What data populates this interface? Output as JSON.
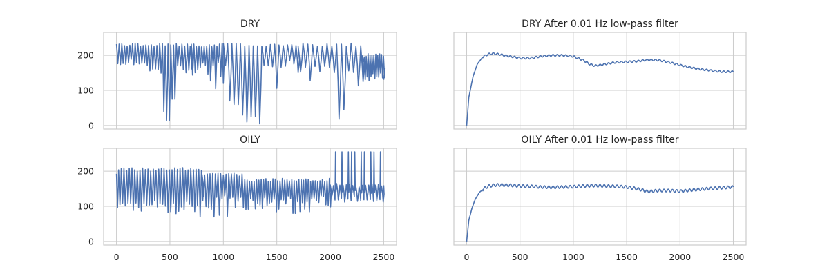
{
  "colors": {
    "line": "#4c72b0",
    "grid": "#cccccc",
    "spine": "#cccccc",
    "background": "#ffffff",
    "text": "#262626"
  },
  "chart_data": [
    {
      "type": "line",
      "title": "DRY",
      "xlabel": "",
      "ylabel": "",
      "xlim": [
        -120,
        2620
      ],
      "ylim": [
        -10,
        265
      ],
      "x_ticks": [
        0,
        500,
        1000,
        1500,
        2000,
        2500
      ],
      "y_ticks": [
        0,
        100,
        200
      ],
      "show_x_tick_labels": false,
      "show_y_tick_labels": true,
      "grid": true,
      "series": [
        {
          "pattern": "oscillating",
          "segments": [
            {
              "x": [
                0,
                300
              ],
              "period": 25,
              "high": 230,
              "low": 180,
              "spike_low": 170
            },
            {
              "x": [
                300,
                700
              ],
              "period": 26,
              "high": 230,
              "low": 160,
              "spike_low": 130,
              "deep_dips": [
                {
                  "x": 420,
                  "y": 40
                },
                {
                  "x": 470,
                  "y": 15
                },
                {
                  "x": 520,
                  "y": 75
                },
                {
                  "x": 580,
                  "y": 170
                }
              ]
            },
            {
              "x": [
                700,
                1000
              ],
              "period": 24,
              "high": 228,
              "low": 170,
              "spike_low": 120,
              "deep_dips": [
                {
                  "x": 920,
                  "y": 105
                },
                {
                  "x": 980,
                  "y": 120
                }
              ]
            },
            {
              "x": [
                1000,
                1700
              ],
              "period": 40,
              "high": 230,
              "low": 175,
              "spike_low": 8,
              "deep_dips": [
                {
                  "x": 1030,
                  "y": 70
                },
                {
                  "x": 1100,
                  "y": 60
                },
                {
                  "x": 1180,
                  "y": 30
                },
                {
                  "x": 1210,
                  "y": 10
                },
                {
                  "x": 1260,
                  "y": 25
                },
                {
                  "x": 1330,
                  "y": 5
                }
              ]
            },
            {
              "x": [
                1700,
                2300
              ],
              "period": 45,
              "high": 230,
              "low": 160,
              "spike_low": 5
            },
            {
              "x": [
                2300,
                2500
              ],
              "period": 18,
              "high": 200,
              "low": 140,
              "spike_low": 120,
              "end_y": 130
            }
          ]
        }
      ]
    },
    {
      "type": "line",
      "title": "DRY After 0.01 Hz low-pass filter",
      "xlabel": "",
      "ylabel": "",
      "xlim": [
        -120,
        2620
      ],
      "ylim": [
        -10,
        265
      ],
      "x_ticks": [
        0,
        500,
        1000,
        1500,
        2000,
        2500
      ],
      "y_ticks": [
        0,
        100,
        200
      ],
      "show_x_tick_labels": false,
      "show_y_tick_labels": false,
      "grid": true,
      "series": [
        {
          "pattern": "smooth",
          "ripple_period": 40,
          "ripple_amplitude": 2.5,
          "x": [
            0,
            20,
            60,
            100,
            150,
            200,
            250,
            300,
            350,
            400,
            450,
            500,
            600,
            700,
            800,
            900,
            1000,
            1100,
            1150,
            1200,
            1250,
            1300,
            1400,
            1500,
            1600,
            1700,
            1800,
            1900,
            2000,
            2100,
            2200,
            2300,
            2400,
            2500
          ],
          "y": [
            0,
            80,
            140,
            175,
            195,
            203,
            205,
            203,
            200,
            197,
            195,
            192,
            192,
            197,
            200,
            200,
            197,
            185,
            175,
            170,
            172,
            175,
            180,
            181,
            183,
            187,
            186,
            180,
            172,
            165,
            160,
            156,
            153,
            153
          ]
        }
      ]
    },
    {
      "type": "line",
      "title": "OILY",
      "xlabel": "",
      "ylabel": "",
      "xlim": [
        -120,
        2620
      ],
      "ylim": [
        -10,
        265
      ],
      "x_ticks": [
        0,
        500,
        1000,
        1500,
        2000,
        2500
      ],
      "x_tick_labels": [
        "0",
        "500",
        "1000",
        "1500",
        "2000",
        "2500"
      ],
      "y_ticks": [
        0,
        100,
        200
      ],
      "show_x_tick_labels": true,
      "show_y_tick_labels": true,
      "grid": true,
      "series": [
        {
          "pattern": "oscillating",
          "segments": [
            {
              "x": [
                0,
                20
              ],
              "period": 20,
              "high": 190,
              "low": 100,
              "spike_low": 100
            },
            {
              "x": [
                20,
                800
              ],
              "period": 25,
              "high": 205,
              "low": 110,
              "spike_low": 75,
              "deep_dips": [
                {
                  "x": 630,
                  "y": 90
                },
                {
                  "x": 710,
                  "y": 85
                },
                {
                  "x": 780,
                  "y": 70
                }
              ]
            },
            {
              "x": [
                800,
                1200
              ],
              "period": 25,
              "high": 190,
              "low": 125,
              "spike_low": 70,
              "deep_dips": [
                {
                  "x": 900,
                  "y": 70
                },
                {
                  "x": 860,
                  "y": 95
                }
              ]
            },
            {
              "x": [
                1200,
                2000
              ],
              "period": 22,
              "high": 175,
              "low": 120,
              "spike_low": 80,
              "deep_dips": [
                {
                  "x": 1650,
                  "y": 80
                },
                {
                  "x": 1700,
                  "y": 85
                }
              ]
            },
            {
              "x": [
                2000,
                2500
              ],
              "period": 30,
              "high": 160,
              "low": 120,
              "spike_low": 110,
              "spikes_up": [
                {
                  "x": 2040,
                  "y": 255
                },
                {
                  "x": 2090,
                  "y": 255
                },
                {
                  "x": 2140,
                  "y": 255
                },
                {
                  "x": 2180,
                  "y": 255
                },
                {
                  "x": 2220,
                  "y": 255
                },
                {
                  "x": 2270,
                  "y": 255
                },
                {
                  "x": 2310,
                  "y": 255
                },
                {
                  "x": 2350,
                  "y": 255
                },
                {
                  "x": 2400,
                  "y": 255
                },
                {
                  "x": 2450,
                  "y": 255
                },
                {
                  "x": 2500,
                  "y": 255
                }
              ],
              "end_y": 160
            }
          ]
        }
      ]
    },
    {
      "type": "line",
      "title": "OILY After 0.01 Hz low-pass filter",
      "xlabel": "",
      "ylabel": "",
      "xlim": [
        -120,
        2620
      ],
      "ylim": [
        -10,
        265
      ],
      "x_ticks": [
        0,
        500,
        1000,
        1500,
        2000,
        2500
      ],
      "x_tick_labels": [
        "0",
        "500",
        "1000",
        "1500",
        "2000",
        "2500"
      ],
      "y_ticks": [
        0,
        100,
        200
      ],
      "show_x_tick_labels": true,
      "show_y_tick_labels": false,
      "grid": true,
      "series": [
        {
          "pattern": "smooth",
          "ripple_period": 40,
          "ripple_amplitude": 4,
          "x": [
            0,
            20,
            50,
            80,
            120,
            160,
            200,
            250,
            300,
            400,
            500,
            600,
            700,
            800,
            900,
            1000,
            1100,
            1200,
            1300,
            1400,
            1500,
            1600,
            1700,
            1800,
            1900,
            2000,
            2100,
            2200,
            2300,
            2400,
            2500
          ],
          "y": [
            0,
            60,
            95,
            120,
            140,
            150,
            157,
            160,
            161,
            160,
            158,
            157,
            155,
            154,
            155,
            156,
            158,
            159,
            158,
            157,
            155,
            150,
            142,
            145,
            145,
            143,
            146,
            149,
            151,
            153,
            155
          ]
        }
      ]
    }
  ],
  "y_tick_labels": [
    "0",
    "100",
    "200"
  ]
}
